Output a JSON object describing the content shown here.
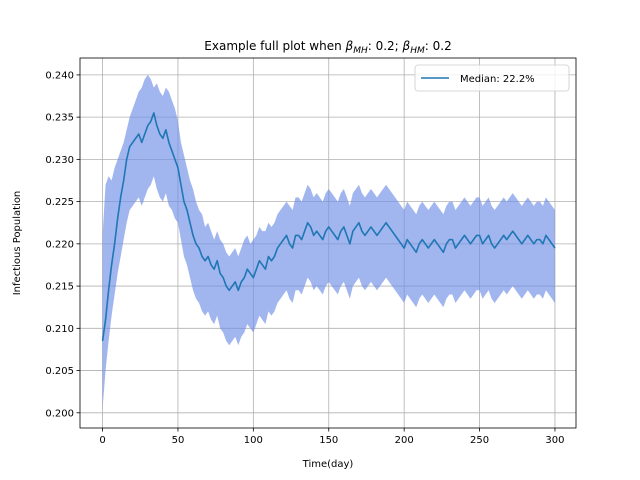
{
  "chart_data": {
    "type": "line",
    "title_prefix": "Example full plot when ",
    "title_beta1": "β",
    "title_beta1_sub": "MH",
    "title_mid": ": 0.2; ",
    "title_beta2": "β",
    "title_beta2_sub": "HM",
    "title_suffix": ": 0.2",
    "xlabel": "Time(day)",
    "ylabel": "Infectious Population",
    "xlim": [
      -14.95,
      313.95
    ],
    "ylim": [
      0.1982,
      0.242
    ],
    "x_ticks": [
      0,
      50,
      100,
      150,
      200,
      250,
      300
    ],
    "x_tick_labels": [
      "0",
      "50",
      "100",
      "150",
      "200",
      "250",
      "300"
    ],
    "y_ticks": [
      0.2,
      0.205,
      0.21,
      0.215,
      0.22,
      0.225,
      0.23,
      0.235,
      0.24
    ],
    "y_tick_labels": [
      "0.200",
      "0.205",
      "0.210",
      "0.215",
      "0.220",
      "0.225",
      "0.230",
      "0.235",
      "0.240"
    ],
    "grid": true,
    "legend_position": "top-right",
    "series": [
      {
        "name": "Median: 22.2%",
        "color": "#1f77b4",
        "x": [
          0,
          2,
          4,
          6,
          8,
          10,
          12,
          14,
          16,
          18,
          20,
          22,
          24,
          26,
          28,
          30,
          32,
          34,
          36,
          38,
          40,
          42,
          44,
          46,
          48,
          50,
          52,
          54,
          56,
          58,
          60,
          62,
          64,
          66,
          68,
          70,
          72,
          74,
          76,
          78,
          80,
          82,
          84,
          86,
          88,
          90,
          92,
          94,
          96,
          98,
          100,
          102,
          104,
          106,
          108,
          110,
          112,
          114,
          116,
          118,
          120,
          122,
          124,
          126,
          128,
          130,
          132,
          134,
          136,
          138,
          140,
          142,
          144,
          146,
          148,
          150,
          152,
          154,
          156,
          158,
          160,
          162,
          164,
          166,
          168,
          170,
          172,
          174,
          176,
          178,
          180,
          182,
          184,
          186,
          188,
          190,
          192,
          194,
          196,
          198,
          200,
          202,
          204,
          206,
          208,
          210,
          212,
          214,
          216,
          218,
          220,
          222,
          224,
          226,
          228,
          230,
          232,
          234,
          236,
          238,
          240,
          242,
          244,
          246,
          248,
          250,
          252,
          254,
          256,
          258,
          260,
          262,
          264,
          266,
          268,
          270,
          272,
          274,
          276,
          278,
          280,
          282,
          284,
          286,
          288,
          290,
          292,
          294,
          296,
          298,
          300
        ],
        "values": [
          0.2085,
          0.211,
          0.2145,
          0.2175,
          0.22,
          0.223,
          0.2255,
          0.2275,
          0.23,
          0.2315,
          0.232,
          0.2325,
          0.233,
          0.232,
          0.233,
          0.234,
          0.2345,
          0.2355,
          0.234,
          0.233,
          0.2325,
          0.2335,
          0.232,
          0.231,
          0.23,
          0.229,
          0.227,
          0.225,
          0.224,
          0.2225,
          0.221,
          0.22,
          0.2195,
          0.2185,
          0.218,
          0.2185,
          0.2175,
          0.217,
          0.218,
          0.2165,
          0.216,
          0.215,
          0.2145,
          0.215,
          0.2155,
          0.2145,
          0.2155,
          0.216,
          0.217,
          0.2165,
          0.216,
          0.217,
          0.218,
          0.2175,
          0.217,
          0.2185,
          0.218,
          0.2185,
          0.2195,
          0.22,
          0.2205,
          0.221,
          0.22,
          0.2195,
          0.221,
          0.221,
          0.2205,
          0.2215,
          0.2225,
          0.222,
          0.221,
          0.2215,
          0.221,
          0.2205,
          0.2215,
          0.222,
          0.2215,
          0.221,
          0.2205,
          0.2215,
          0.222,
          0.221,
          0.22,
          0.2215,
          0.222,
          0.2225,
          0.2215,
          0.221,
          0.2215,
          0.222,
          0.2215,
          0.221,
          0.2215,
          0.222,
          0.2225,
          0.222,
          0.2215,
          0.221,
          0.2205,
          0.22,
          0.2195,
          0.2205,
          0.22,
          0.2195,
          0.219,
          0.22,
          0.2205,
          0.22,
          0.2195,
          0.22,
          0.2205,
          0.22,
          0.2195,
          0.219,
          0.22,
          0.2205,
          0.2205,
          0.2195,
          0.22,
          0.2205,
          0.221,
          0.2205,
          0.22,
          0.2205,
          0.221,
          0.221,
          0.22,
          0.2205,
          0.221,
          0.22,
          0.2195,
          0.22,
          0.2205,
          0.221,
          0.2205,
          0.221,
          0.2215,
          0.221,
          0.2205,
          0.22,
          0.2205,
          0.221,
          0.2205,
          0.22,
          0.2205,
          0.2205,
          0.22,
          0.221,
          0.2205,
          0.22,
          0.2195
        ]
      }
    ],
    "band": {
      "color": "#6e8ee6",
      "opacity": 0.65,
      "upper": [
        0.221,
        0.227,
        0.228,
        0.2275,
        0.229,
        0.23,
        0.231,
        0.232,
        0.2335,
        0.235,
        0.236,
        0.237,
        0.238,
        0.2385,
        0.2395,
        0.24,
        0.2395,
        0.2385,
        0.239,
        0.238,
        0.2375,
        0.2385,
        0.238,
        0.237,
        0.236,
        0.2345,
        0.232,
        0.2305,
        0.229,
        0.2275,
        0.2265,
        0.225,
        0.224,
        0.2235,
        0.222,
        0.2225,
        0.2215,
        0.2205,
        0.2215,
        0.2205,
        0.22,
        0.219,
        0.2185,
        0.219,
        0.2195,
        0.2185,
        0.2195,
        0.2205,
        0.221,
        0.22,
        0.2205,
        0.221,
        0.222,
        0.2215,
        0.2215,
        0.2225,
        0.222,
        0.2225,
        0.2235,
        0.224,
        0.2245,
        0.225,
        0.2245,
        0.224,
        0.2255,
        0.2255,
        0.225,
        0.226,
        0.227,
        0.2265,
        0.2255,
        0.226,
        0.2255,
        0.225,
        0.226,
        0.2265,
        0.226,
        0.2255,
        0.225,
        0.226,
        0.2265,
        0.2255,
        0.2245,
        0.226,
        0.2265,
        0.227,
        0.226,
        0.2255,
        0.226,
        0.2265,
        0.226,
        0.2255,
        0.226,
        0.2265,
        0.227,
        0.2265,
        0.226,
        0.2255,
        0.225,
        0.2245,
        0.224,
        0.225,
        0.2245,
        0.224,
        0.2235,
        0.2245,
        0.225,
        0.2245,
        0.224,
        0.2245,
        0.225,
        0.2245,
        0.224,
        0.2235,
        0.2245,
        0.225,
        0.225,
        0.224,
        0.2245,
        0.225,
        0.2255,
        0.225,
        0.2245,
        0.225,
        0.2255,
        0.2255,
        0.2245,
        0.225,
        0.2255,
        0.2245,
        0.224,
        0.2245,
        0.225,
        0.2255,
        0.225,
        0.2255,
        0.226,
        0.2255,
        0.225,
        0.2245,
        0.225,
        0.2255,
        0.225,
        0.2245,
        0.225,
        0.225,
        0.2245,
        0.2255,
        0.225,
        0.2245,
        0.224
      ],
      "lower": [
        0.2005,
        0.205,
        0.2085,
        0.2115,
        0.214,
        0.2165,
        0.2185,
        0.2205,
        0.2225,
        0.224,
        0.2245,
        0.225,
        0.2255,
        0.2245,
        0.2255,
        0.2265,
        0.227,
        0.228,
        0.2265,
        0.2255,
        0.225,
        0.226,
        0.2245,
        0.224,
        0.223,
        0.2225,
        0.2205,
        0.2185,
        0.2175,
        0.216,
        0.2145,
        0.2135,
        0.213,
        0.212,
        0.2115,
        0.212,
        0.211,
        0.2105,
        0.2115,
        0.21,
        0.2095,
        0.2085,
        0.208,
        0.2085,
        0.209,
        0.208,
        0.209,
        0.2095,
        0.2105,
        0.21,
        0.2095,
        0.2105,
        0.2115,
        0.211,
        0.2105,
        0.212,
        0.2115,
        0.212,
        0.213,
        0.2135,
        0.214,
        0.2145,
        0.2135,
        0.213,
        0.2145,
        0.2145,
        0.214,
        0.215,
        0.216,
        0.2155,
        0.2145,
        0.215,
        0.2145,
        0.214,
        0.215,
        0.2155,
        0.215,
        0.2145,
        0.214,
        0.215,
        0.2155,
        0.2145,
        0.2135,
        0.215,
        0.2155,
        0.216,
        0.215,
        0.2145,
        0.215,
        0.2155,
        0.215,
        0.2145,
        0.215,
        0.2155,
        0.216,
        0.2155,
        0.215,
        0.2145,
        0.214,
        0.2135,
        0.213,
        0.214,
        0.2135,
        0.213,
        0.2125,
        0.2135,
        0.214,
        0.2135,
        0.213,
        0.2135,
        0.214,
        0.2135,
        0.213,
        0.2125,
        0.2135,
        0.214,
        0.214,
        0.213,
        0.2135,
        0.214,
        0.2145,
        0.214,
        0.2135,
        0.214,
        0.2145,
        0.2145,
        0.2135,
        0.214,
        0.2145,
        0.2135,
        0.213,
        0.2135,
        0.214,
        0.2145,
        0.214,
        0.2145,
        0.215,
        0.2145,
        0.214,
        0.2135,
        0.214,
        0.2145,
        0.214,
        0.2135,
        0.214,
        0.214,
        0.2135,
        0.2145,
        0.214,
        0.2135,
        0.213
      ]
    }
  }
}
